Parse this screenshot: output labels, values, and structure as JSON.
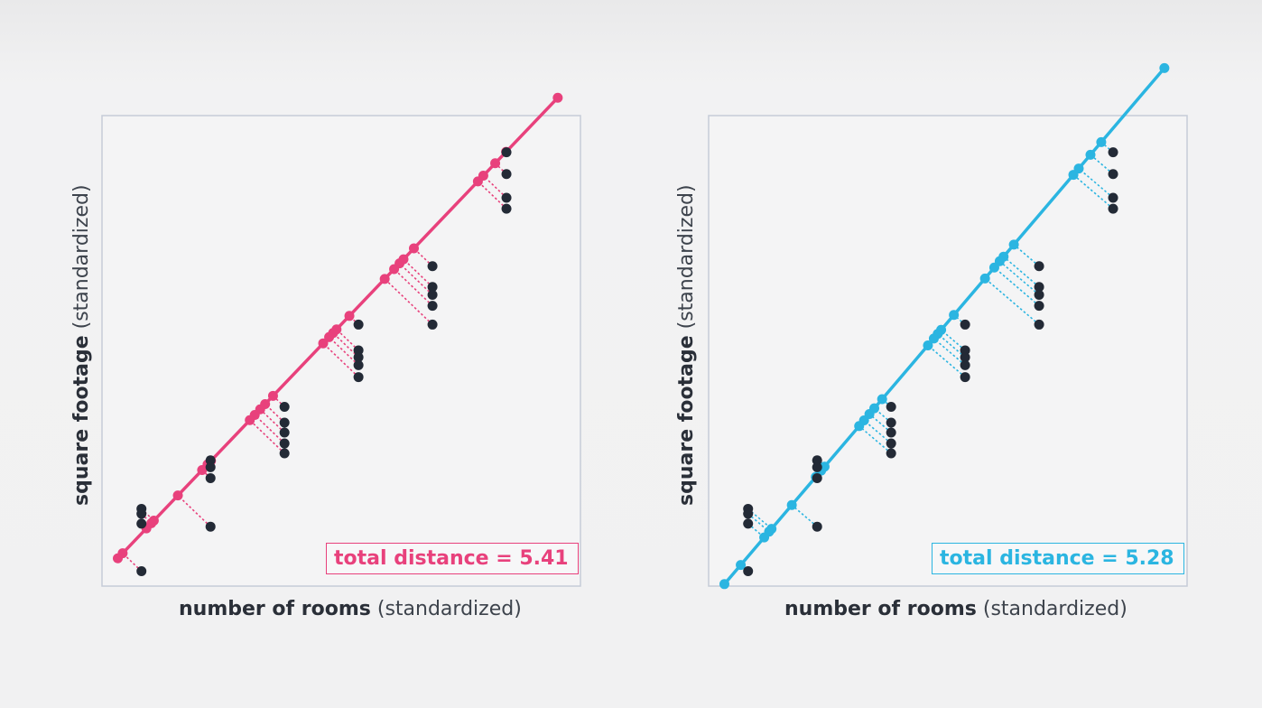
{
  "chart_data": [
    {
      "type": "scatter",
      "xlabel_bold": "number of rooms",
      "xlabel_rest": "(standardized)",
      "ylabel_bold": "square footage",
      "ylabel_rest": "(standardized)",
      "annotation": "total distance = 5.41",
      "fit_line": [
        [
          -2.14,
          -2.07
        ],
        [
          2.32,
          2.58
        ]
      ],
      "points": [
        [
          -1.9,
          -1.57
        ],
        [
          -1.9,
          -1.62
        ],
        [
          -1.9,
          -1.72
        ],
        [
          -1.9,
          -2.2
        ],
        [
          -1.2,
          -1.08
        ],
        [
          -1.2,
          -1.15
        ],
        [
          -1.2,
          -1.26
        ],
        [
          -1.2,
          -1.75
        ],
        [
          -0.45,
          -0.54
        ],
        [
          -0.45,
          -0.7
        ],
        [
          -0.45,
          -0.8
        ],
        [
          -0.45,
          -0.91
        ],
        [
          -0.45,
          -1.01
        ],
        [
          0.3,
          0.29
        ],
        [
          0.3,
          0.03
        ],
        [
          0.3,
          -0.04
        ],
        [
          0.3,
          -0.12
        ],
        [
          0.3,
          -0.24
        ],
        [
          1.05,
          0.88
        ],
        [
          1.05,
          0.67
        ],
        [
          1.05,
          0.59
        ],
        [
          1.05,
          0.48
        ],
        [
          1.05,
          0.29
        ],
        [
          1.8,
          2.03
        ],
        [
          1.8,
          1.81
        ],
        [
          1.8,
          1.57
        ],
        [
          1.8,
          1.46
        ]
      ],
      "color": "#e8417c",
      "xlim": [
        -2.3,
        2.55
      ],
      "ylim": [
        -2.35,
        2.4
      ]
    },
    {
      "type": "scatter",
      "xlabel_bold": "number of rooms",
      "xlabel_rest": "(standardized)",
      "ylabel_bold": "square footage",
      "ylabel_rest": "(standardized)",
      "annotation": "total distance = 5.28",
      "fit_line": [
        [
          -2.14,
          -2.33
        ],
        [
          2.32,
          2.88
        ]
      ],
      "points": [
        [
          -1.9,
          -1.57
        ],
        [
          -1.9,
          -1.62
        ],
        [
          -1.9,
          -1.72
        ],
        [
          -1.9,
          -2.2
        ],
        [
          -1.2,
          -1.08
        ],
        [
          -1.2,
          -1.15
        ],
        [
          -1.2,
          -1.26
        ],
        [
          -1.2,
          -1.75
        ],
        [
          -0.45,
          -0.54
        ],
        [
          -0.45,
          -0.7
        ],
        [
          -0.45,
          -0.8
        ],
        [
          -0.45,
          -0.91
        ],
        [
          -0.45,
          -1.01
        ],
        [
          0.3,
          0.29
        ],
        [
          0.3,
          0.03
        ],
        [
          0.3,
          -0.04
        ],
        [
          0.3,
          -0.12
        ],
        [
          0.3,
          -0.24
        ],
        [
          1.05,
          0.88
        ],
        [
          1.05,
          0.67
        ],
        [
          1.05,
          0.59
        ],
        [
          1.05,
          0.48
        ],
        [
          1.05,
          0.29
        ],
        [
          1.8,
          2.03
        ],
        [
          1.8,
          1.81
        ],
        [
          1.8,
          1.57
        ],
        [
          1.8,
          1.46
        ]
      ],
      "color": "#2bb5e1",
      "xlim": [
        -2.3,
        2.55
      ],
      "ylim": [
        -2.35,
        2.4
      ]
    }
  ],
  "theme": {
    "point_color": "#232a36",
    "frame_color": "#c6ccd8"
  }
}
